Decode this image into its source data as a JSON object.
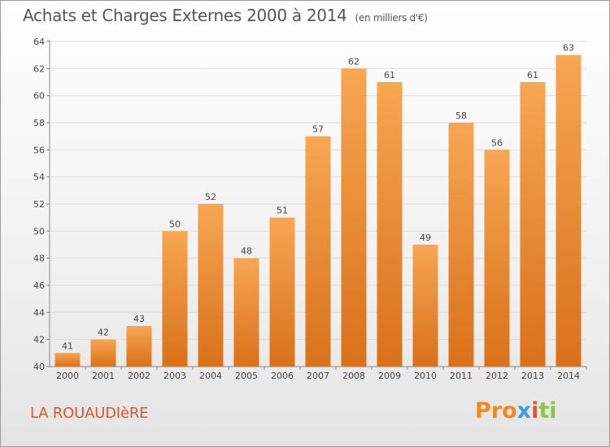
{
  "title": "Achats et Charges Externes 2000 à 2014",
  "unit": "(en milliers d'€)",
  "commune": "LA ROUAUDIèRE",
  "logo": {
    "p1": "Pro",
    "p2": "x",
    "p3": "i",
    "p4": "ti"
  },
  "colors": {
    "bar_light": "#f7a652",
    "bar_dark": "#d9711a",
    "title": "#555555",
    "commune": "#e0542e"
  },
  "chart_data": {
    "type": "bar",
    "categories": [
      "2000",
      "2001",
      "2002",
      "2003",
      "2004",
      "2005",
      "2006",
      "2007",
      "2008",
      "2009",
      "2010",
      "2011",
      "2012",
      "2013",
      "2014"
    ],
    "values": [
      41,
      42,
      43,
      50,
      52,
      48,
      51,
      57,
      62,
      61,
      49,
      58,
      56,
      61,
      63
    ],
    "ylim": [
      40,
      64
    ],
    "yticks": [
      40,
      42,
      44,
      46,
      48,
      50,
      52,
      54,
      56,
      58,
      60,
      62,
      64
    ],
    "grid": true
  }
}
